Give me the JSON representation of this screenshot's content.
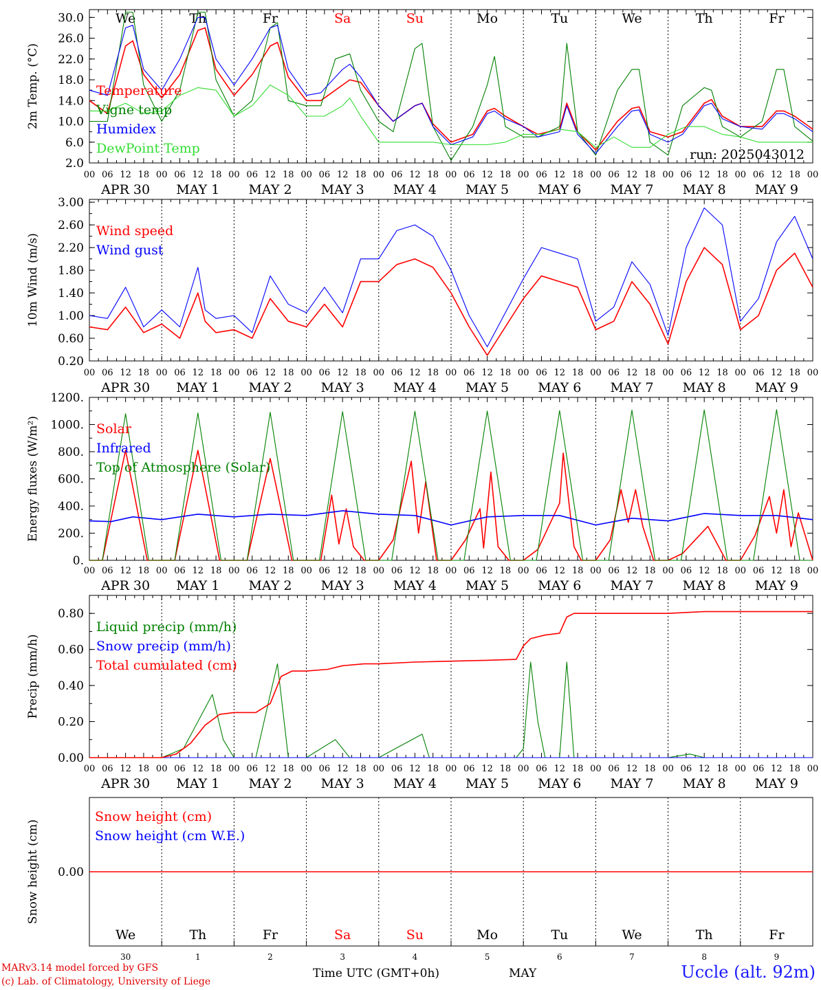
{
  "colors": {
    "red": "#ff0000",
    "green": "#008000",
    "blue": "#0000ff",
    "lightgreen": "#33dd33",
    "weekend": "#ff0000"
  },
  "day_names": [
    "We",
    "Th",
    "Fr",
    "Sa",
    "Su",
    "Mo",
    "Tu",
    "We",
    "Th",
    "Fr"
  ],
  "weekend_days": [
    3,
    4
  ],
  "hour_ticks": [
    "00",
    "06",
    "12",
    "18"
  ],
  "date_labels": [
    "APR 30",
    "MAY  1",
    "MAY  2",
    "MAY  3",
    "MAY  4",
    "MAY  5",
    "MAY  6",
    "MAY  7",
    "MAY  8",
    "MAY  9"
  ],
  "day_numbers": [
    "30",
    "1",
    "2",
    "3",
    "4",
    "5",
    "6",
    "7",
    "8",
    "9"
  ],
  "footer": {
    "model": "MARv3.14 model forced by GFS",
    "lab": "(c) Lab. of Climatology, University of Liege",
    "time_label": "Time UTC (GMT+0h)",
    "month": "MAY",
    "site": "Uccle (alt. 92m)"
  },
  "chart_data": [
    {
      "type": "line",
      "ylabel": "2m Temp. (°C)",
      "ylim": [
        2,
        31.5
      ],
      "yticks": [
        "2.0",
        "6.0",
        "10.0",
        "14.0",
        "18.0",
        "22.0",
        "26.0",
        "30.0"
      ],
      "annotation": "run: 2025043012",
      "x_unit": "days since APR 30 00 UTC",
      "series": [
        {
          "name": "Temperature",
          "color": "red",
          "x": [
            0,
            0.25,
            0.5,
            0.6,
            0.75,
            1,
            1.25,
            1.5,
            1.6,
            1.75,
            2,
            2.25,
            2.5,
            2.6,
            2.75,
            3,
            3.2,
            3.5,
            3.6,
            3.75,
            4,
            4.2,
            4.5,
            4.6,
            4.75,
            5,
            5.3,
            5.5,
            5.6,
            5.75,
            6,
            6.2,
            6.5,
            6.6,
            6.75,
            7,
            7.3,
            7.5,
            7.6,
            7.75,
            8,
            8.2,
            8.5,
            8.6,
            8.75,
            9,
            9.3,
            9.5,
            9.6,
            9.75,
            10
          ],
          "y": [
            14,
            11.5,
            24.5,
            25.5,
            19,
            14.5,
            19,
            27.5,
            28,
            20,
            15,
            19,
            24.5,
            25.2,
            18.5,
            14,
            14,
            17,
            18,
            17.5,
            13,
            10,
            13,
            13.5,
            9.5,
            6,
            7.5,
            12,
            12.5,
            11,
            9,
            7.5,
            8.5,
            13.5,
            8,
            4.5,
            10,
            12.5,
            12.8,
            8,
            7,
            8,
            13.5,
            14.2,
            11,
            9,
            9,
            12,
            12,
            11,
            8.5
          ]
        },
        {
          "name": "Vigne temp",
          "color": "green",
          "x": [
            0,
            0.25,
            0.5,
            0.6,
            0.75,
            1,
            1.25,
            1.5,
            1.6,
            1.75,
            2,
            2.25,
            2.5,
            2.6,
            2.75,
            3,
            3.2,
            3.4,
            3.6,
            3.75,
            4,
            4.2,
            4.5,
            4.6,
            4.75,
            5,
            5.3,
            5.5,
            5.6,
            5.75,
            6,
            6.2,
            6.5,
            6.6,
            6.75,
            7,
            7.3,
            7.5,
            7.6,
            7.75,
            8,
            8.2,
            8.5,
            8.6,
            8.75,
            9,
            9.3,
            9.5,
            9.6,
            9.75,
            10
          ],
          "y": [
            10,
            10,
            31,
            31,
            17,
            10,
            16,
            31,
            31,
            18,
            11,
            14,
            28,
            29,
            14,
            13,
            13,
            22,
            23,
            16,
            10,
            8,
            24,
            25,
            9,
            2.5,
            9,
            17,
            22.5,
            9,
            7,
            7,
            9,
            25,
            8,
            3.5,
            16,
            20,
            20,
            6,
            3.5,
            13,
            16.5,
            16,
            9,
            7,
            10,
            20,
            20,
            9,
            6.2
          ]
        },
        {
          "name": "Humidex",
          "color": "blue",
          "x": [
            0,
            0.25,
            0.5,
            0.6,
            0.75,
            1,
            1.25,
            1.5,
            1.6,
            1.75,
            2,
            2.25,
            2.5,
            2.6,
            2.75,
            3,
            3.2,
            3.5,
            3.6,
            3.75,
            4,
            4.2,
            4.5,
            4.6,
            4.75,
            5,
            5.3,
            5.5,
            5.6,
            5.75,
            6,
            6.2,
            6.5,
            6.6,
            6.75,
            7,
            7.3,
            7.5,
            7.6,
            7.75,
            8,
            8.2,
            8.5,
            8.6,
            8.75,
            9,
            9.3,
            9.5,
            9.6,
            9.75,
            10
          ],
          "y": [
            16,
            15,
            28,
            28.5,
            20,
            16,
            22,
            30,
            30,
            22,
            17,
            22,
            28,
            28.5,
            20,
            15,
            15.5,
            20,
            21,
            18.5,
            13,
            10,
            13,
            13.5,
            9,
            5.5,
            7,
            11.5,
            12,
            10.5,
            9,
            7,
            8,
            13,
            7.5,
            3.8,
            9,
            12,
            12.2,
            7.5,
            6,
            7.5,
            13,
            13.5,
            10.5,
            9,
            8.5,
            11.5,
            11.5,
            10.5,
            8
          ]
        },
        {
          "name": "DewPoint Temp",
          "color": "lightgreen",
          "x": [
            0,
            0.25,
            0.5,
            0.75,
            1,
            1.25,
            1.5,
            1.75,
            2,
            2.25,
            2.5,
            2.75,
            3,
            3.25,
            3.5,
            3.6,
            3.75,
            4,
            4.25,
            4.5,
            4.75,
            5,
            5.25,
            5.5,
            5.75,
            6,
            6.25,
            6.5,
            6.75,
            7,
            7.25,
            7.5,
            7.75,
            8,
            8.25,
            8.5,
            8.75,
            9,
            9.25,
            9.5,
            9.75,
            10
          ],
          "y": [
            12,
            12,
            13.5,
            11.5,
            12,
            15,
            16.5,
            16,
            11,
            13,
            17,
            15,
            11,
            11,
            13,
            14.5,
            11,
            6,
            6,
            6,
            6,
            5.5,
            5.5,
            5.5,
            6,
            7.5,
            7.5,
            8.5,
            8,
            5,
            7,
            5,
            5,
            7.5,
            9,
            9,
            7.5,
            7,
            6,
            6,
            6,
            6
          ]
        }
      ]
    },
    {
      "type": "line",
      "ylabel": "10m Wind (m/s)",
      "ylim": [
        0.2,
        3.05
      ],
      "yticks": [
        "0.20",
        "0.60",
        "1.00",
        "1.40",
        "1.80",
        "2.20",
        "2.60",
        "3.00"
      ],
      "series": [
        {
          "name": "Wind speed",
          "color": "red",
          "x": [
            0,
            0.25,
            0.5,
            0.75,
            1,
            1.25,
            1.5,
            1.6,
            1.75,
            2,
            2.25,
            2.5,
            2.75,
            3,
            3.25,
            3.5,
            3.75,
            4,
            4.25,
            4.5,
            4.75,
            5,
            5.25,
            5.5,
            5.75,
            6,
            6.25,
            6.5,
            6.75,
            7,
            7.25,
            7.5,
            7.75,
            8,
            8.25,
            8.5,
            8.75,
            9,
            9.25,
            9.5,
            9.75,
            10
          ],
          "y": [
            0.8,
            0.75,
            1.15,
            0.7,
            0.85,
            0.6,
            1.4,
            0.9,
            0.7,
            0.75,
            0.6,
            1.3,
            0.9,
            0.8,
            1.2,
            0.8,
            1.6,
            1.6,
            1.9,
            2.0,
            1.85,
            1.4,
            0.8,
            0.3,
            0.8,
            1.3,
            1.7,
            1.6,
            1.5,
            0.75,
            0.9,
            1.6,
            1.2,
            0.5,
            1.6,
            2.2,
            1.9,
            0.75,
            1.0,
            1.8,
            2.1,
            1.5
          ]
        },
        {
          "name": "Wind gust",
          "color": "blue",
          "x": [
            0,
            0.25,
            0.5,
            0.75,
            1,
            1.25,
            1.5,
            1.6,
            1.75,
            2,
            2.25,
            2.5,
            2.75,
            3,
            3.25,
            3.5,
            3.75,
            4,
            4.25,
            4.5,
            4.75,
            5,
            5.25,
            5.5,
            5.75,
            6,
            6.25,
            6.5,
            6.75,
            7,
            7.25,
            7.5,
            7.75,
            8,
            8.25,
            8.5,
            8.75,
            9,
            9.25,
            9.5,
            9.75,
            10
          ],
          "y": [
            1.0,
            0.95,
            1.5,
            0.8,
            1.1,
            0.8,
            1.85,
            1.1,
            0.95,
            1.0,
            0.7,
            1.7,
            1.2,
            1.05,
            1.5,
            1.05,
            2.0,
            2.0,
            2.5,
            2.6,
            2.4,
            1.8,
            1.0,
            0.45,
            1.05,
            1.65,
            2.2,
            2.1,
            2.0,
            0.9,
            1.15,
            1.95,
            1.55,
            0.65,
            2.2,
            2.9,
            2.6,
            0.9,
            1.3,
            2.3,
            2.75,
            2.0
          ]
        }
      ]
    },
    {
      "type": "line",
      "ylabel": "Energy fluxes (W/m²)",
      "ylim": [
        0,
        1200
      ],
      "yticks": [
        "0.",
        "200.",
        "400.",
        "600.",
        "800.",
        "1000.",
        "1200."
      ],
      "series": [
        {
          "name": "Solar",
          "color": "red",
          "x": [
            0,
            0.18,
            0.5,
            0.8,
            1,
            1.18,
            1.5,
            1.8,
            2,
            2.18,
            2.5,
            2.8,
            3,
            3.2,
            3.35,
            3.45,
            3.55,
            3.65,
            3.8,
            4,
            4.2,
            4.45,
            4.55,
            4.65,
            4.8,
            5,
            5.2,
            5.4,
            5.45,
            5.55,
            5.65,
            5.8,
            6,
            6.2,
            6.5,
            6.55,
            6.7,
            6.8,
            7,
            7.2,
            7.35,
            7.45,
            7.55,
            7.65,
            7.8,
            8,
            8.2,
            8.55,
            8.8,
            9,
            9.2,
            9.4,
            9.5,
            9.6,
            9.7,
            9.8,
            10
          ],
          "y": [
            0,
            0,
            810,
            0,
            0,
            0,
            810,
            0,
            0,
            0,
            750,
            0,
            0,
            0,
            480,
            120,
            380,
            100,
            0,
            0,
            150,
            730,
            200,
            580,
            0,
            0,
            150,
            380,
            90,
            650,
            100,
            0,
            0,
            80,
            420,
            790,
            100,
            0,
            0,
            150,
            520,
            280,
            520,
            250,
            0,
            0,
            50,
            250,
            0,
            0,
            180,
            470,
            200,
            520,
            100,
            350,
            0
          ]
        },
        {
          "name": "Infrared",
          "color": "blue",
          "x": [
            0,
            0.3,
            0.6,
            1,
            1.5,
            2,
            2.5,
            3,
            3.5,
            4,
            4.5,
            5,
            5.5,
            6,
            6.5,
            7,
            7.5,
            8,
            8.5,
            9,
            9.5,
            10
          ],
          "y": [
            290,
            285,
            320,
            300,
            340,
            320,
            340,
            330,
            365,
            340,
            330,
            260,
            320,
            330,
            330,
            260,
            310,
            290,
            345,
            330,
            330,
            300
          ]
        },
        {
          "name": "Top of Atmosphere (Solar)",
          "color": "green",
          "x": [
            0,
            0.18,
            0.5,
            0.82,
            1,
            1.18,
            1.5,
            1.82,
            2,
            2.18,
            2.5,
            2.82,
            3,
            3.18,
            3.5,
            3.82,
            4,
            4.18,
            4.5,
            4.82,
            5,
            5.18,
            5.5,
            5.82,
            6,
            6.18,
            6.5,
            6.82,
            7,
            7.18,
            7.5,
            7.82,
            8,
            8.18,
            8.5,
            8.82,
            9,
            9.18,
            9.5,
            9.82,
            10
          ],
          "y": [
            0,
            0,
            1080,
            0,
            0,
            0,
            1085,
            0,
            0,
            0,
            1090,
            0,
            0,
            0,
            1095,
            0,
            0,
            0,
            1098,
            0,
            0,
            0,
            1100,
            0,
            0,
            0,
            1103,
            0,
            0,
            0,
            1106,
            0,
            0,
            0,
            1108,
            0,
            0,
            0,
            1110,
            0,
            0
          ]
        }
      ]
    },
    {
      "type": "line",
      "ylabel": "Precip (mm/h)",
      "ylim": [
        0,
        0.9
      ],
      "yticks": [
        "0.00",
        "0.20",
        "0.40",
        "0.60",
        "0.80"
      ],
      "series": [
        {
          "name": "Liquid precip (mm/h)",
          "color": "green",
          "x": [
            0,
            1,
            1.3,
            1.5,
            1.7,
            1.85,
            2,
            2.3,
            2.5,
            2.6,
            2.75,
            3,
            3.4,
            3.6,
            3.8,
            4,
            4.6,
            4.7,
            5,
            5.9,
            6,
            6.1,
            6.2,
            6.3,
            6.5,
            6.6,
            6.7,
            6.8,
            7,
            8,
            8.3,
            8.5,
            10
          ],
          "y": [
            0,
            0,
            0.05,
            0.2,
            0.35,
            0.1,
            0,
            0,
            0.35,
            0.52,
            0,
            0,
            0.1,
            0,
            0,
            0,
            0.13,
            0,
            0,
            0,
            0.05,
            0.53,
            0.2,
            0,
            0,
            0.53,
            0,
            0,
            0,
            0,
            0.02,
            0,
            0
          ]
        },
        {
          "name": "Snow precip (mm/h)",
          "color": "blue",
          "x": [
            0,
            10
          ],
          "y": [
            0,
            0
          ]
        },
        {
          "name": "Total cumulated (cm)",
          "color": "red",
          "x": [
            0,
            1,
            1.2,
            1.4,
            1.6,
            1.8,
            2,
            2.3,
            2.5,
            2.65,
            2.8,
            3,
            3.3,
            3.5,
            3.8,
            4,
            4.5,
            5,
            5.5,
            5.9,
            6,
            6.1,
            6.3,
            6.5,
            6.6,
            6.7,
            7,
            8,
            8.5,
            10
          ],
          "y": [
            0,
            0,
            0.02,
            0.08,
            0.18,
            0.24,
            0.25,
            0.25,
            0.3,
            0.45,
            0.48,
            0.48,
            0.49,
            0.51,
            0.52,
            0.52,
            0.53,
            0.535,
            0.54,
            0.545,
            0.62,
            0.66,
            0.68,
            0.69,
            0.78,
            0.8,
            0.8,
            0.8,
            0.81,
            0.81
          ]
        }
      ]
    },
    {
      "type": "line",
      "ylabel": "Snow height (cm)",
      "ylim": [
        -1,
        1
      ],
      "yticks": [
        "0.00"
      ],
      "series": [
        {
          "name": "Snow height (cm)",
          "color": "red",
          "x": [
            0,
            10
          ],
          "y": [
            0,
            0
          ]
        },
        {
          "name": "Snow height (cm W.E.)",
          "color": "blue",
          "x": [],
          "y": []
        }
      ]
    }
  ]
}
